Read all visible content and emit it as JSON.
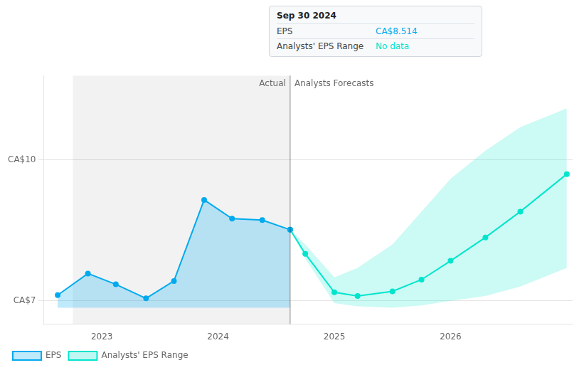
{
  "chart_data": {
    "type": "line",
    "xlim": [
      2022.5,
      2027.05
    ],
    "xticks": [
      2023,
      2024,
      2025,
      2026
    ],
    "ylim": [
      6.5,
      11.8
    ],
    "yticks": [
      {
        "value": 10.0,
        "label": "CA$10"
      },
      {
        "value": 7.0,
        "label": "CA$7"
      }
    ],
    "grid": "y",
    "legend": "bottom",
    "highlight": [
      2022.75,
      2024.62
    ],
    "divider": {
      "x": 2024.62,
      "labels": [
        "Actual",
        "Analysts Forecasts"
      ]
    },
    "tooltip": {
      "title": "Sep 30 2024",
      "rows": [
        {
          "label": "EPS",
          "value": "CA$8.514"
        },
        {
          "label": "Analysts' EPS Range",
          "value": "No data"
        }
      ]
    },
    "series": [
      {
        "name": "EPS",
        "color": "#00aaee",
        "marker": "circle",
        "x": [
          2022.62,
          2022.88,
          2023.12,
          2023.38,
          2023.62,
          2023.88,
          2024.12,
          2024.38,
          2024.62
        ],
        "values": [
          7.12,
          7.58,
          7.35,
          7.05,
          7.42,
          9.15,
          8.75,
          8.72,
          8.514
        ],
        "fill_bottom": 6.85
      },
      {
        "name": "Analysts' EPS Range",
        "color": "#00e5cc",
        "marker": "circle",
        "x": [
          2024.62,
          2024.75,
          2025.0,
          2025.2,
          2025.5,
          2025.75,
          2026.0,
          2026.3,
          2026.6,
          2027.0
        ],
        "values": [
          8.514,
          8.0,
          7.18,
          7.1,
          7.2,
          7.45,
          7.85,
          8.35,
          8.9,
          9.7
        ],
        "lower": [
          8.514,
          7.9,
          6.95,
          6.88,
          6.85,
          6.9,
          7.0,
          7.1,
          7.3,
          7.7
        ],
        "upper": [
          8.514,
          8.2,
          7.5,
          7.7,
          8.2,
          8.9,
          9.6,
          10.2,
          10.7,
          11.1
        ]
      }
    ]
  }
}
